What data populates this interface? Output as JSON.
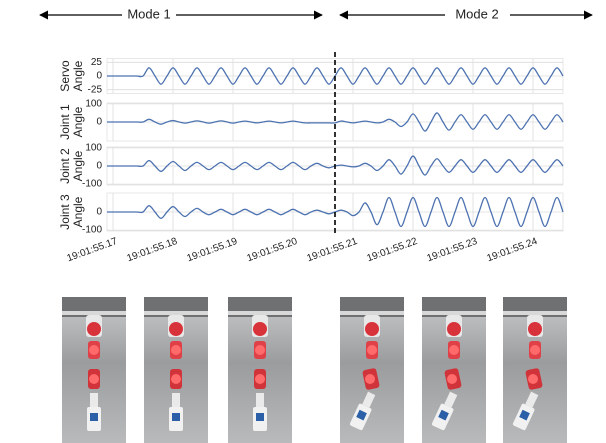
{
  "chart_data": {
    "type": "line",
    "annotations": [
      "Mode 1",
      "Mode 2"
    ],
    "boundary": 55.207,
    "xlim": [
      55.169,
      55.245
    ],
    "xticks": [
      {
        "value": 55.17,
        "label": "19:01:55.17"
      },
      {
        "value": 55.18,
        "label": "19:01:55.18"
      },
      {
        "value": 55.19,
        "label": "19:01:55.19"
      },
      {
        "value": 55.2,
        "label": "19:01:55.20"
      },
      {
        "value": 55.21,
        "label": "19:01:55.21"
      },
      {
        "value": 55.22,
        "label": "19:01:55.22"
      },
      {
        "value": 55.23,
        "label": "19:01:55.23"
      },
      {
        "value": 55.24,
        "label": "19:01:55.24"
      }
    ],
    "grid": true,
    "x": [
      55.169,
      55.17,
      55.171,
      55.172,
      55.173,
      55.174,
      55.175,
      55.176,
      55.177,
      55.178,
      55.179,
      55.18,
      55.181,
      55.182,
      55.183,
      55.184,
      55.185,
      55.186,
      55.187,
      55.188,
      55.189,
      55.19,
      55.191,
      55.192,
      55.193,
      55.194,
      55.195,
      55.196,
      55.197,
      55.198,
      55.199,
      55.2,
      55.201,
      55.202,
      55.203,
      55.204,
      55.205,
      55.206,
      55.207,
      55.208,
      55.209,
      55.21,
      55.211,
      55.212,
      55.213,
      55.214,
      55.215,
      55.216,
      55.217,
      55.218,
      55.219,
      55.22,
      55.221,
      55.222,
      55.223,
      55.224,
      55.225,
      55.226,
      55.227,
      55.228,
      55.229,
      55.23,
      55.231,
      55.232,
      55.233,
      55.234,
      55.235,
      55.236,
      55.237,
      55.238,
      55.239,
      55.24,
      55.241,
      55.242,
      55.243,
      55.244,
      55.245
    ],
    "panels": [
      {
        "ylabel": [
          "Servo",
          "Angle"
        ],
        "ylim": [
          -32,
          32
        ],
        "yticks": [
          -25,
          0,
          25
        ],
        "series": [
          {
            "color": "#4c72b0",
            "values": [
              0,
              0,
              0,
              0,
              0,
              0,
              0,
              15,
              0,
              -15,
              0,
              15,
              0,
              -15,
              0,
              15,
              0,
              -15,
              0,
              15,
              0,
              -15,
              0,
              15,
              0,
              -15,
              0,
              15,
              0,
              -15,
              0,
              15,
              0,
              -15,
              0,
              15,
              0,
              -15,
              0,
              15,
              0,
              -15,
              0,
              15,
              0,
              -15,
              0,
              15,
              0,
              -15,
              0,
              15,
              0,
              -15,
              0,
              15,
              0,
              -15,
              0,
              15,
              0,
              -15,
              0,
              15,
              0,
              -15,
              0,
              15,
              0,
              -15,
              0,
              15,
              0,
              -15,
              0,
              15,
              0
            ]
          }
        ]
      },
      {
        "ylabel": [
          "Joint 1",
          "Angle"
        ],
        "ylim": [
          -105,
          105
        ],
        "yticks": [
          0,
          100
        ],
        "series": [
          {
            "color": "#4c72b0",
            "values": [
              0,
              0,
              0,
              0,
              0,
              0,
              0,
              15,
              0,
              -12,
              0,
              8,
              0,
              -6,
              0,
              6,
              0,
              -6,
              0,
              6,
              0,
              -6,
              0,
              5,
              0,
              -5,
              0,
              5,
              0,
              -5,
              0,
              5,
              0,
              -5,
              -5,
              -5,
              -5,
              -5,
              -5,
              5,
              0,
              -5,
              0,
              5,
              0,
              -5,
              0,
              15,
              0,
              -25,
              0,
              45,
              0,
              -50,
              0,
              50,
              0,
              -45,
              0,
              40,
              0,
              -40,
              0,
              40,
              0,
              -40,
              0,
              40,
              0,
              -40,
              0,
              40,
              0,
              -40,
              0,
              40,
              0
            ]
          }
        ]
      },
      {
        "ylabel": [
          "Joint 2",
          "Angle"
        ],
        "ylim": [
          -105,
          105
        ],
        "yticks": [
          -100,
          0,
          100
        ],
        "series": [
          {
            "color": "#4c72b0",
            "values": [
              0,
              0,
              0,
              0,
              0,
              0,
              0,
              30,
              0,
              -30,
              0,
              25,
              0,
              -25,
              0,
              20,
              0,
              -20,
              0,
              20,
              0,
              -20,
              0,
              20,
              0,
              -20,
              0,
              20,
              0,
              -20,
              0,
              20,
              0,
              -20,
              0,
              15,
              0,
              -10,
              0,
              5,
              0,
              -5,
              0,
              15,
              0,
              -25,
              0,
              35,
              0,
              -45,
              0,
              55,
              0,
              -50,
              0,
              40,
              0,
              -35,
              0,
              35,
              0,
              -35,
              0,
              35,
              0,
              -35,
              0,
              35,
              0,
              -35,
              0,
              35,
              0,
              -35,
              0,
              35,
              0
            ]
          }
        ]
      },
      {
        "ylabel": [
          "Joint 3",
          "Angle"
        ],
        "ylim": [
          -105,
          105
        ],
        "yticks": [
          -100,
          0
        ],
        "series": [
          {
            "color": "#4c72b0",
            "values": [
              0,
              0,
              0,
              0,
              0,
              0,
              0,
              35,
              0,
              -35,
              0,
              30,
              0,
              -25,
              0,
              20,
              0,
              -15,
              0,
              15,
              0,
              -15,
              0,
              15,
              0,
              -15,
              0,
              15,
              0,
              -15,
              0,
              15,
              0,
              -15,
              0,
              10,
              0,
              -10,
              0,
              10,
              0,
              -20,
              0,
              50,
              0,
              -70,
              0,
              80,
              0,
              -80,
              0,
              80,
              0,
              -80,
              0,
              80,
              0,
              -80,
              0,
              80,
              0,
              -80,
              0,
              80,
              0,
              -80,
              0,
              80,
              0,
              -80,
              0,
              80,
              0,
              -80,
              0,
              80,
              0
            ]
          }
        ]
      }
    ]
  }
}
